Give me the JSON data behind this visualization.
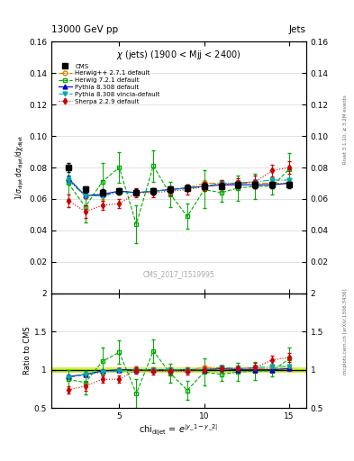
{
  "title_top": "13000 GeV pp",
  "title_right": "Jets",
  "subtitle": "χ (jets) (1900 < Mjj < 2400)",
  "watermark": "CMS_2017_I1519995",
  "right_label_top": "Rivet 3.1.10, ≥ 3.2M events",
  "right_label_bottom": "mcplots.cern.ch [arXiv:1306.3436]",
  "ylim_main": [
    0,
    0.16
  ],
  "ylim_ratio": [
    0.5,
    2.0
  ],
  "xlim": [
    1,
    16
  ],
  "yticks_main": [
    0.02,
    0.04,
    0.06,
    0.08,
    0.1,
    0.12,
    0.14,
    0.16
  ],
  "yticks_ratio": [
    0.5,
    1.0,
    1.5,
    2.0
  ],
  "xticks": [
    5,
    10,
    15
  ],
  "cms_x": [
    2,
    3,
    4,
    5,
    6,
    7,
    8,
    9,
    10,
    11,
    12,
    13,
    14,
    15
  ],
  "cms_y": [
    0.08,
    0.066,
    0.064,
    0.065,
    0.064,
    0.065,
    0.066,
    0.067,
    0.068,
    0.068,
    0.069,
    0.069,
    0.069,
    0.069
  ],
  "cms_yerr": [
    0.003,
    0.002,
    0.002,
    0.002,
    0.002,
    0.002,
    0.002,
    0.002,
    0.002,
    0.002,
    0.002,
    0.002,
    0.002,
    0.002
  ],
  "herwig271_x": [
    2,
    3,
    4,
    5,
    6,
    7,
    8,
    9,
    10,
    11,
    12,
    13,
    14,
    15
  ],
  "herwig271_y": [
    0.072,
    0.062,
    0.062,
    0.065,
    0.064,
    0.065,
    0.066,
    0.067,
    0.07,
    0.07,
    0.07,
    0.07,
    0.07,
    0.07
  ],
  "herwig271_yerr": [
    0.002,
    0.002,
    0.002,
    0.002,
    0.002,
    0.002,
    0.002,
    0.002,
    0.002,
    0.002,
    0.002,
    0.002,
    0.002,
    0.002
  ],
  "herwig721_x": [
    2,
    3,
    4,
    5,
    6,
    7,
    8,
    9,
    10,
    11,
    12,
    13,
    14,
    15
  ],
  "herwig721_y": [
    0.07,
    0.055,
    0.071,
    0.08,
    0.044,
    0.081,
    0.063,
    0.049,
    0.066,
    0.064,
    0.067,
    0.068,
    0.068,
    0.079
  ],
  "herwig721_yerr": [
    0.01,
    0.01,
    0.012,
    0.01,
    0.012,
    0.01,
    0.008,
    0.008,
    0.012,
    0.006,
    0.008,
    0.008,
    0.005,
    0.01
  ],
  "pythia8_x": [
    2,
    3,
    4,
    5,
    6,
    7,
    8,
    9,
    10,
    11,
    12,
    13,
    14,
    15
  ],
  "pythia8_y": [
    0.073,
    0.062,
    0.063,
    0.065,
    0.064,
    0.065,
    0.066,
    0.067,
    0.068,
    0.069,
    0.069,
    0.069,
    0.069,
    0.07
  ],
  "pythia8_yerr": [
    0.002,
    0.001,
    0.001,
    0.001,
    0.001,
    0.001,
    0.001,
    0.001,
    0.001,
    0.001,
    0.001,
    0.001,
    0.001,
    0.001
  ],
  "pythia8v_x": [
    2,
    3,
    4,
    5,
    6,
    7,
    8,
    9,
    10,
    11,
    12,
    13,
    14,
    15
  ],
  "pythia8v_y": [
    0.072,
    0.062,
    0.062,
    0.064,
    0.064,
    0.065,
    0.066,
    0.067,
    0.068,
    0.07,
    0.07,
    0.071,
    0.072,
    0.072
  ],
  "pythia8v_yerr": [
    0.002,
    0.001,
    0.001,
    0.001,
    0.001,
    0.001,
    0.001,
    0.001,
    0.001,
    0.001,
    0.001,
    0.001,
    0.001,
    0.001
  ],
  "sherpa_x": [
    2,
    3,
    4,
    5,
    6,
    7,
    8,
    9,
    10,
    11,
    12,
    13,
    14,
    15
  ],
  "sherpa_y": [
    0.059,
    0.052,
    0.056,
    0.057,
    0.064,
    0.064,
    0.065,
    0.066,
    0.068,
    0.069,
    0.07,
    0.071,
    0.078,
    0.08
  ],
  "sherpa_yerr": [
    0.004,
    0.004,
    0.003,
    0.003,
    0.003,
    0.003,
    0.003,
    0.003,
    0.003,
    0.003,
    0.003,
    0.004,
    0.004,
    0.004
  ],
  "cms_band_err": 0.03,
  "color_cms": "#000000",
  "color_herwig271": "#e08000",
  "color_herwig721": "#00aa00",
  "color_pythia8": "#0000cc",
  "color_pythia8v": "#00aaaa",
  "color_sherpa": "#cc0000",
  "color_band_outer": "#ccdd00",
  "color_band_inner": "#88cc00"
}
